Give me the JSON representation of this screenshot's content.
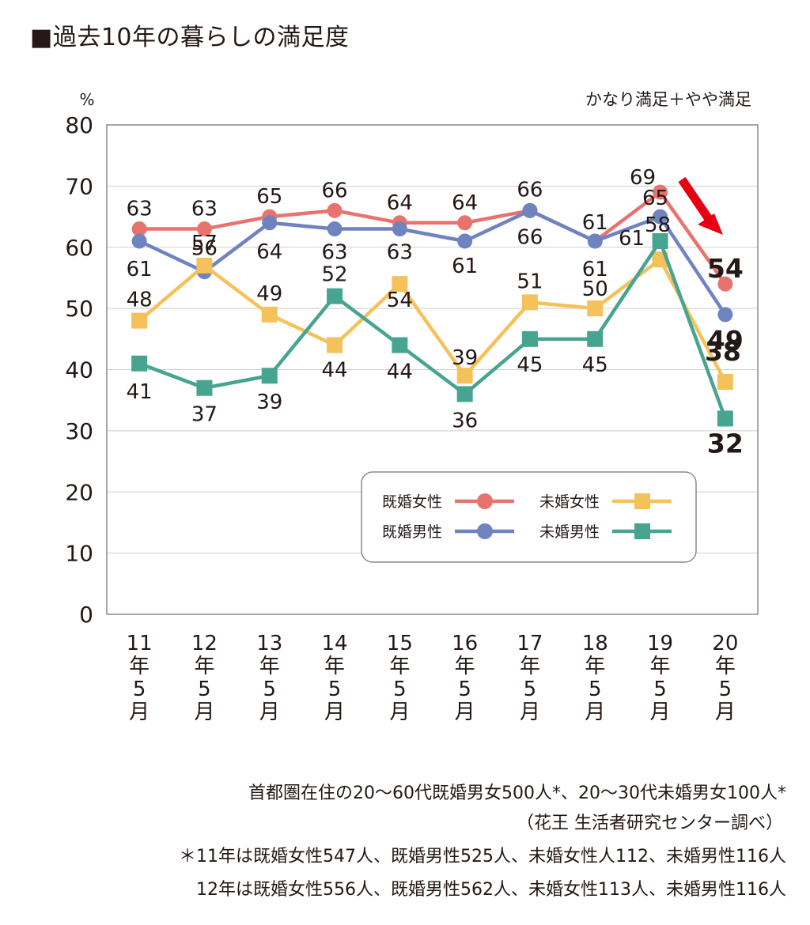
{
  "title": "■過去10年の暮らしの満足度",
  "chart_data": {
    "type": "line",
    "unit": "%",
    "subtitle": "かなり満足＋やや満足",
    "ylim": [
      0,
      80
    ],
    "yticks": [
      0,
      10,
      20,
      30,
      40,
      50,
      60,
      70,
      80
    ],
    "grid": true,
    "categories": [
      [
        "11",
        "年",
        "5",
        "月"
      ],
      [
        "12",
        "年",
        "5",
        "月"
      ],
      [
        "13",
        "年",
        "5",
        "月"
      ],
      [
        "14",
        "年",
        "5",
        "月"
      ],
      [
        "15",
        "年",
        "5",
        "月"
      ],
      [
        "16",
        "年",
        "5",
        "月"
      ],
      [
        "17",
        "年",
        "5",
        "月"
      ],
      [
        "18",
        "年",
        "5",
        "月"
      ],
      [
        "19",
        "年",
        "5",
        "月"
      ],
      [
        "20",
        "年",
        "5",
        "月"
      ]
    ],
    "series": [
      {
        "name": "既婚女性",
        "color": "#e8736e",
        "marker": "circle",
        "values": [
          63,
          63,
          65,
          66,
          64,
          64,
          66,
          61,
          69,
          54
        ]
      },
      {
        "name": "既婚男性",
        "color": "#6f83c0",
        "marker": "circle",
        "values": [
          61,
          56,
          64,
          63,
          63,
          61,
          66,
          61,
          65,
          49
        ]
      },
      {
        "name": "未婚女性",
        "color": "#f5c15a",
        "marker": "square",
        "values": [
          48,
          57,
          49,
          44,
          54,
          39,
          51,
          50,
          58,
          38
        ]
      },
      {
        "name": "未婚男性",
        "color": "#47a491",
        "marker": "square",
        "values": [
          41,
          37,
          39,
          52,
          44,
          36,
          45,
          45,
          61,
          32
        ]
      }
    ],
    "legend_position": "bottom-right",
    "arrow_color": "#e60012"
  },
  "notes": [
    "首都圏在住の20～60代既婚男女500人*、20～30代未婚男女100人*",
    "（花王 生活者研究センター調べ）",
    "＊11年は既婚女性547人、既婚男性525人、未婚女性人112、未婚男性116人",
    "12年は既婚女性556人、既婚男性562人、未婚女性113人、未婚男性116人"
  ]
}
